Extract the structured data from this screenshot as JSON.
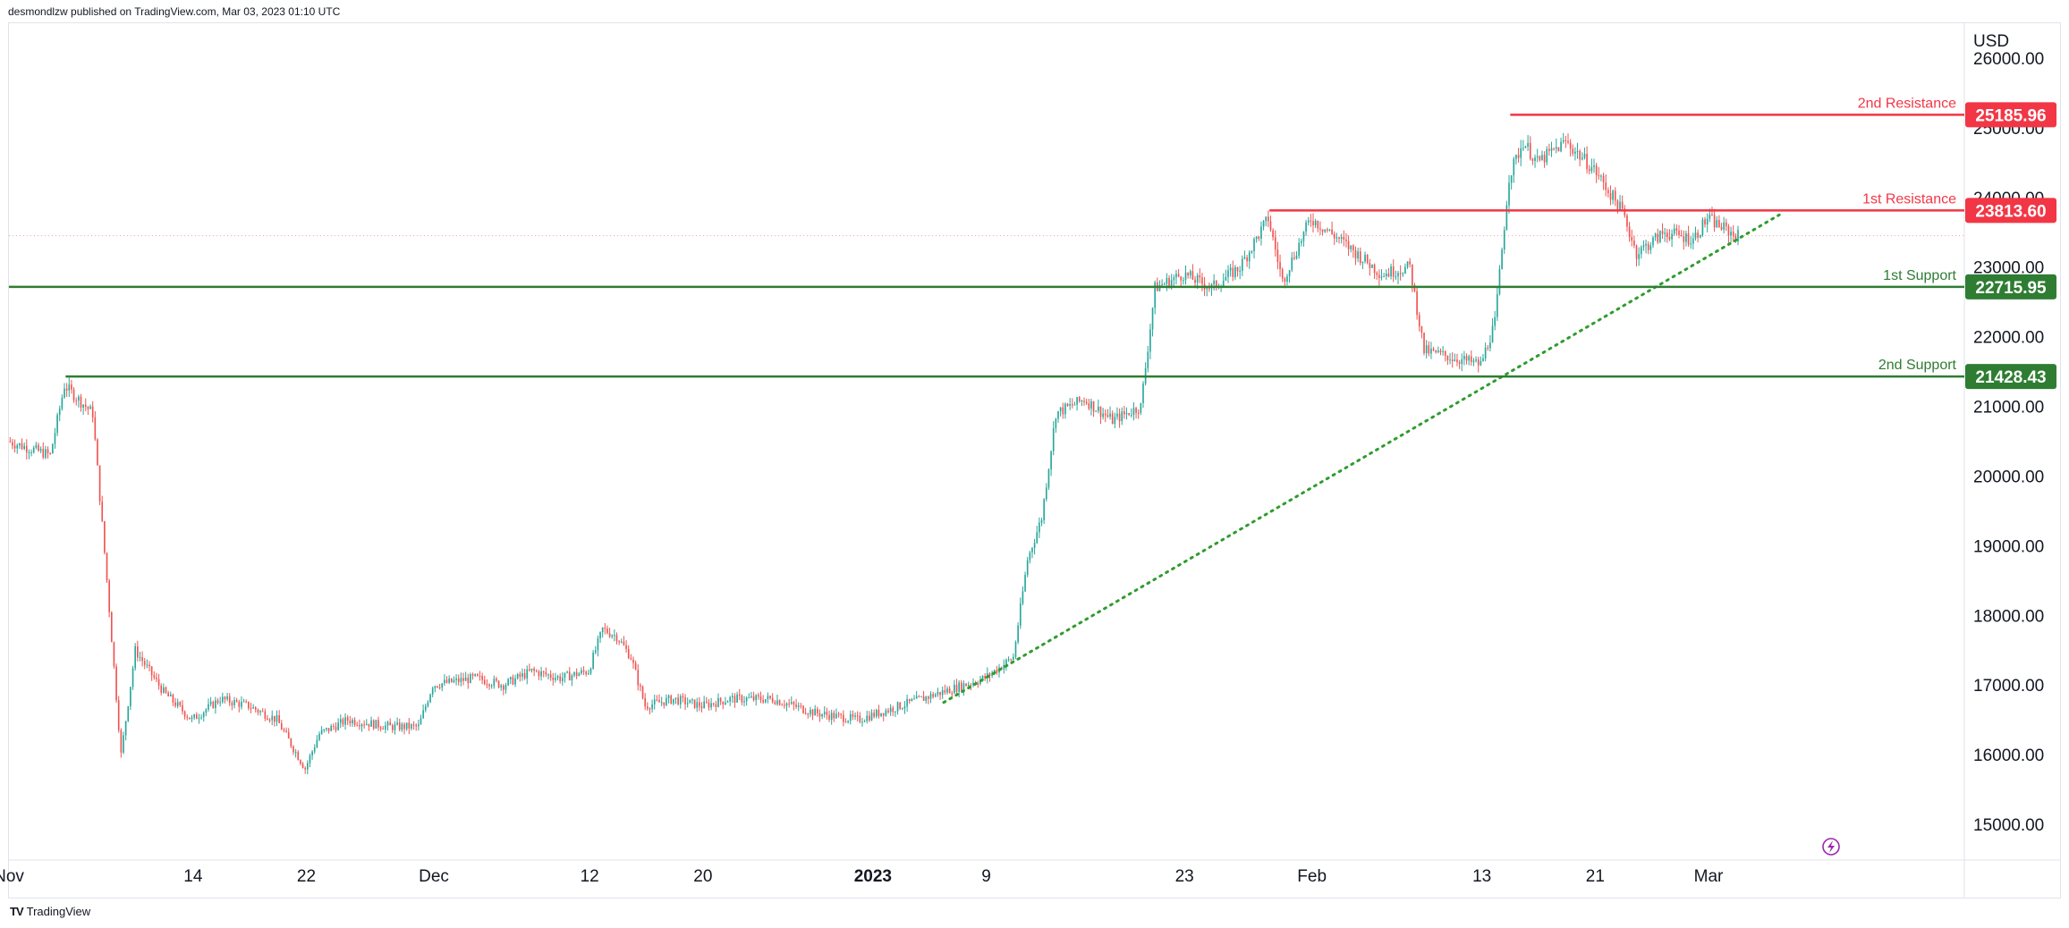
{
  "header": {
    "published": "desmondlzw published on TradingView.com, Mar 03, 2023 01:10 UTC"
  },
  "footer": {
    "brand": "TradingView"
  },
  "colors": {
    "up": "#26a69a",
    "down": "#ef5350",
    "resistance": "#f23645",
    "support": "#2e7d32",
    "trendline": "#2e9c2e"
  },
  "chart_data": {
    "type": "candlestick",
    "currency_label": "USD",
    "ylim": [
      14500,
      26500
    ],
    "y_ticks": [
      15000,
      16000,
      17000,
      18000,
      19000,
      20000,
      21000,
      22000,
      23000,
      24000,
      25000,
      26000
    ],
    "y_tick_labels": [
      "15000.00",
      "16000.00",
      "17000.00",
      "18000.00",
      "19000.00",
      "20000.00",
      "21000.00",
      "22000.00",
      "23000.00",
      "24000.00",
      "25000.00",
      "26000.00"
    ],
    "x_range": [
      "2022-11-01",
      "2023-03-19"
    ],
    "x_ticks": [
      {
        "date": "2022-11-01",
        "label": "Nov",
        "bold": false
      },
      {
        "date": "2022-11-14",
        "label": "14",
        "bold": false
      },
      {
        "date": "2022-11-22",
        "label": "22",
        "bold": false
      },
      {
        "date": "2022-12-01",
        "label": "Dec",
        "bold": false
      },
      {
        "date": "2022-12-12",
        "label": "12",
        "bold": false
      },
      {
        "date": "2022-12-20",
        "label": "20",
        "bold": false
      },
      {
        "date": "2023-01-01",
        "label": "2023",
        "bold": true
      },
      {
        "date": "2023-01-09",
        "label": "9",
        "bold": false
      },
      {
        "date": "2023-01-23",
        "label": "23",
        "bold": false
      },
      {
        "date": "2023-02-01",
        "label": "Feb",
        "bold": false
      },
      {
        "date": "2023-02-13",
        "label": "13",
        "bold": false
      },
      {
        "date": "2023-02-21",
        "label": "21",
        "bold": false
      },
      {
        "date": "2023-03-01",
        "label": "Mar",
        "bold": false
      }
    ],
    "price_path": [
      {
        "date": "2022-11-01",
        "price": 20500
      },
      {
        "date": "2022-11-04",
        "price": 20300
      },
      {
        "date": "2022-11-05",
        "price": 21300
      },
      {
        "date": "2022-11-07",
        "price": 20900
      },
      {
        "date": "2022-11-08",
        "price": 18500
      },
      {
        "date": "2022-11-09",
        "price": 16000
      },
      {
        "date": "2022-11-10",
        "price": 17500
      },
      {
        "date": "2022-11-12",
        "price": 16900
      },
      {
        "date": "2022-11-14",
        "price": 16500
      },
      {
        "date": "2022-11-16",
        "price": 16800
      },
      {
        "date": "2022-11-18",
        "price": 16700
      },
      {
        "date": "2022-11-20",
        "price": 16500
      },
      {
        "date": "2022-11-22",
        "price": 15800
      },
      {
        "date": "2022-11-23",
        "price": 16300
      },
      {
        "date": "2022-11-25",
        "price": 16500
      },
      {
        "date": "2022-11-28",
        "price": 16400
      },
      {
        "date": "2022-11-30",
        "price": 16400
      },
      {
        "date": "2022-12-01",
        "price": 17000
      },
      {
        "date": "2022-12-04",
        "price": 17100
      },
      {
        "date": "2022-12-06",
        "price": 17000
      },
      {
        "date": "2022-12-08",
        "price": 17200
      },
      {
        "date": "2022-12-10",
        "price": 17100
      },
      {
        "date": "2022-12-12",
        "price": 17200
      },
      {
        "date": "2022-12-13",
        "price": 17800
      },
      {
        "date": "2022-12-14",
        "price": 17700
      },
      {
        "date": "2022-12-15",
        "price": 17400
      },
      {
        "date": "2022-12-16",
        "price": 16700
      },
      {
        "date": "2022-12-18",
        "price": 16800
      },
      {
        "date": "2022-12-20",
        "price": 16700
      },
      {
        "date": "2022-12-22",
        "price": 16800
      },
      {
        "date": "2022-12-25",
        "price": 16800
      },
      {
        "date": "2022-12-28",
        "price": 16600
      },
      {
        "date": "2022-12-31",
        "price": 16500
      },
      {
        "date": "2023-01-03",
        "price": 16700
      },
      {
        "date": "2023-01-06",
        "price": 16900
      },
      {
        "date": "2023-01-09",
        "price": 17100
      },
      {
        "date": "2023-01-11",
        "price": 17400
      },
      {
        "date": "2023-01-12",
        "price": 18800
      },
      {
        "date": "2023-01-13",
        "price": 19400
      },
      {
        "date": "2023-01-14",
        "price": 20900
      },
      {
        "date": "2023-01-16",
        "price": 21100
      },
      {
        "date": "2023-01-18",
        "price": 20800
      },
      {
        "date": "2023-01-20",
        "price": 21000
      },
      {
        "date": "2023-01-21",
        "price": 22700
      },
      {
        "date": "2023-01-23",
        "price": 22900
      },
      {
        "date": "2023-01-25",
        "price": 22700
      },
      {
        "date": "2023-01-27",
        "price": 23000
      },
      {
        "date": "2023-01-29",
        "price": 23700
      },
      {
        "date": "2023-01-30",
        "price": 22800
      },
      {
        "date": "2023-02-01",
        "price": 23700
      },
      {
        "date": "2023-02-03",
        "price": 23400
      },
      {
        "date": "2023-02-06",
        "price": 22900
      },
      {
        "date": "2023-02-08",
        "price": 23000
      },
      {
        "date": "2023-02-09",
        "price": 21800
      },
      {
        "date": "2023-02-11",
        "price": 21700
      },
      {
        "date": "2023-02-13",
        "price": 21600
      },
      {
        "date": "2023-02-14",
        "price": 22200
      },
      {
        "date": "2023-02-15",
        "price": 24300
      },
      {
        "date": "2023-02-16",
        "price": 24800
      },
      {
        "date": "2023-02-17",
        "price": 24500
      },
      {
        "date": "2023-02-19",
        "price": 24800
      },
      {
        "date": "2023-02-21",
        "price": 24400
      },
      {
        "date": "2023-02-23",
        "price": 23800
      },
      {
        "date": "2023-02-24",
        "price": 23200
      },
      {
        "date": "2023-02-26",
        "price": 23500
      },
      {
        "date": "2023-02-28",
        "price": 23400
      },
      {
        "date": "2023-03-01",
        "price": 23700
      },
      {
        "date": "2023-03-03",
        "price": 23450
      }
    ],
    "current_price": 23450,
    "levels": [
      {
        "name": "2nd Resistance",
        "value": "25185.96",
        "price": 25185.96,
        "kind": "resistance",
        "start": "2023-02-15"
      },
      {
        "name": "1st Resistance",
        "value": "23813.60",
        "price": 23813.6,
        "kind": "resistance",
        "start": "2023-01-29"
      },
      {
        "name": "1st Support",
        "value": "22715.95",
        "price": 22715.95,
        "kind": "support",
        "start": "2022-11-01"
      },
      {
        "name": "2nd Support",
        "value": "21428.43",
        "price": 21428.43,
        "kind": "support",
        "start": "2022-11-05"
      }
    ],
    "trendline": {
      "start": {
        "date": "2023-01-06",
        "price": 16750
      },
      "end": {
        "date": "2023-03-06",
        "price": 23750
      },
      "style": "dotted"
    }
  }
}
